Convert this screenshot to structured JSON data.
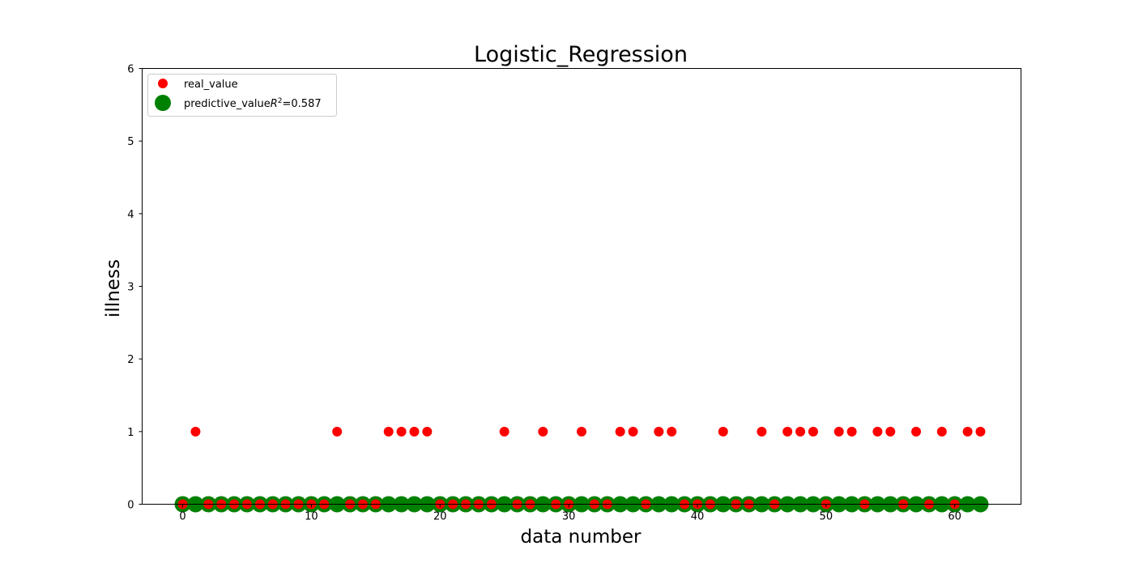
{
  "chart_data": {
    "type": "scatter",
    "title": "Logistic_Regression",
    "xlabel": "data number",
    "ylabel": "illness",
    "xlim": [
      -3.15,
      65.15
    ],
    "ylim": [
      0,
      6
    ],
    "xticks": [
      0,
      10,
      20,
      30,
      40,
      50,
      60
    ],
    "yticks": [
      0,
      1,
      2,
      3,
      4,
      5,
      6
    ],
    "grid": false,
    "legend_position": "top-left",
    "series": [
      {
        "name": "real_value",
        "color": "#ff0000",
        "marker": "small-circle",
        "x": [
          0,
          1,
          2,
          3,
          4,
          5,
          6,
          7,
          8,
          9,
          10,
          11,
          12,
          13,
          14,
          15,
          16,
          17,
          18,
          19,
          20,
          21,
          22,
          23,
          24,
          25,
          26,
          27,
          28,
          29,
          30,
          31,
          32,
          33,
          34,
          35,
          36,
          37,
          38,
          39,
          40,
          41,
          42,
          43,
          44,
          45,
          46,
          47,
          48,
          49,
          50,
          51,
          52,
          53,
          54,
          55,
          56,
          57,
          58,
          59,
          60,
          61,
          62
        ],
        "y": [
          0,
          1,
          0,
          0,
          0,
          0,
          0,
          0,
          0,
          0,
          0,
          0,
          1,
          0,
          0,
          0,
          1,
          1,
          1,
          1,
          0,
          0,
          0,
          0,
          0,
          1,
          0,
          0,
          1,
          0,
          0,
          1,
          0,
          0,
          1,
          1,
          0,
          1,
          1,
          0,
          0,
          0,
          1,
          0,
          0,
          1,
          0,
          1,
          1,
          1,
          0,
          1,
          1,
          0,
          1,
          1,
          0,
          1,
          0,
          1,
          0,
          1,
          1
        ]
      },
      {
        "name": "predictive_value",
        "legend_label_prefix": "predictive_value",
        "legend_label_math": "R",
        "legend_label_sup": "2",
        "legend_label_suffix": "=0.587",
        "r2": 0.587,
        "color": "#008000",
        "marker": "large-circle",
        "x": [
          0,
          1,
          2,
          3,
          4,
          5,
          6,
          7,
          8,
          9,
          10,
          11,
          12,
          13,
          14,
          15,
          16,
          17,
          18,
          19,
          20,
          21,
          22,
          23,
          24,
          25,
          26,
          27,
          28,
          29,
          30,
          31,
          32,
          33,
          34,
          35,
          36,
          37,
          38,
          39,
          40,
          41,
          42,
          43,
          44,
          45,
          46,
          47,
          48,
          49,
          50,
          51,
          52,
          53,
          54,
          55,
          56,
          57,
          58,
          59,
          60,
          61,
          62
        ],
        "y": [
          0,
          0,
          0,
          0,
          0,
          0,
          0,
          0,
          0,
          0,
          0,
          0,
          0,
          0,
          0,
          0,
          0,
          0,
          0,
          0,
          0,
          0,
          0,
          0,
          0,
          0,
          0,
          0,
          0,
          0,
          0,
          0,
          0,
          0,
          0,
          0,
          0,
          0,
          0,
          0,
          0,
          0,
          0,
          0,
          0,
          0,
          0,
          0,
          0,
          0,
          0,
          0,
          0,
          0,
          0,
          0,
          0,
          0,
          0,
          0,
          0,
          0,
          0
        ]
      }
    ]
  }
}
